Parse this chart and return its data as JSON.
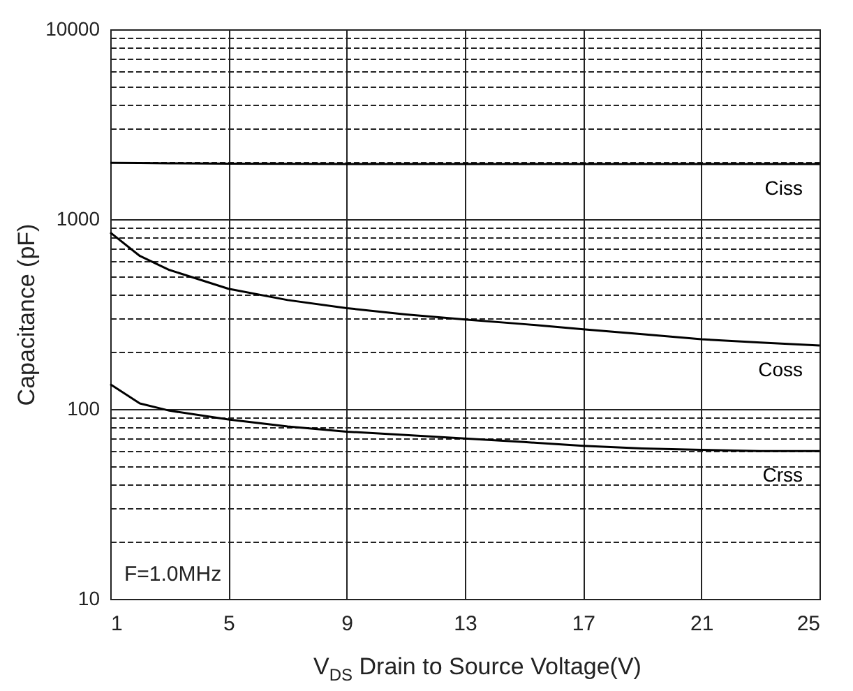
{
  "chart_data": {
    "type": "line",
    "xlabel": "V$_{DS}$ Drain to Source Voltage(V)",
    "ylabel": "Capacitance (pF)",
    "log": "y",
    "grid": true,
    "line_style": "solid",
    "marker": "none",
    "xlim": [
      1,
      25
    ],
    "xticks": [
      1,
      5,
      9,
      13,
      17,
      21,
      25
    ],
    "ylim": [
      10,
      10000
    ],
    "yticks": [
      10,
      {
        "value": 20,
        "label": null
      },
      {
        "value": 30,
        "label": null
      },
      {
        "value": 40,
        "label": null
      },
      {
        "value": 50,
        "label": null
      },
      {
        "value": 60,
        "label": null
      },
      {
        "value": 70,
        "label": null
      },
      {
        "value": 80,
        "label": null
      },
      {
        "value": 90,
        "label": null
      },
      100,
      {
        "value": 200,
        "label": null
      },
      {
        "value": 300,
        "label": null
      },
      {
        "value": 400,
        "label": null
      },
      {
        "value": 500,
        "label": null
      },
      {
        "value": 600,
        "label": null
      },
      {
        "value": 700,
        "label": null
      },
      {
        "value": 800,
        "label": null
      },
      {
        "value": 900,
        "label": null
      },
      1000,
      {
        "value": 2000,
        "label": null
      },
      {
        "value": 3000,
        "label": null
      },
      {
        "value": 4000,
        "label": null
      },
      {
        "value": 5000,
        "label": null
      },
      {
        "value": 6000,
        "label": null
      },
      {
        "value": 7000,
        "label": null
      },
      {
        "value": 8000,
        "label": null
      },
      {
        "value": 9000,
        "label": null
      },
      10000
    ],
    "x": [
      1,
      2,
      3,
      5,
      7,
      9,
      11,
      13,
      15,
      17,
      19,
      21,
      23,
      25
    ],
    "series": [
      {
        "name": "Ciss",
        "color": "#000000",
        "values": [
          1980,
          1975,
          1970,
          1960,
          1955,
          1950,
          1950,
          1950,
          1950,
          1950,
          1950,
          1950,
          1950,
          1950
        ]
      },
      {
        "name": "Coss",
        "color": "#000000",
        "values": [
          850,
          640,
          540,
          430,
          375,
          340,
          315,
          296,
          280,
          263,
          248,
          233,
          224,
          216
        ]
      },
      {
        "name": "Crss",
        "color": "#000000",
        "values": [
          135,
          107,
          98,
          88,
          81,
          76,
          73,
          70,
          67,
          64,
          62,
          61,
          60,
          60
        ]
      }
    ],
    "annotations": [
      "F=1.0MHz"
    ]
  }
}
